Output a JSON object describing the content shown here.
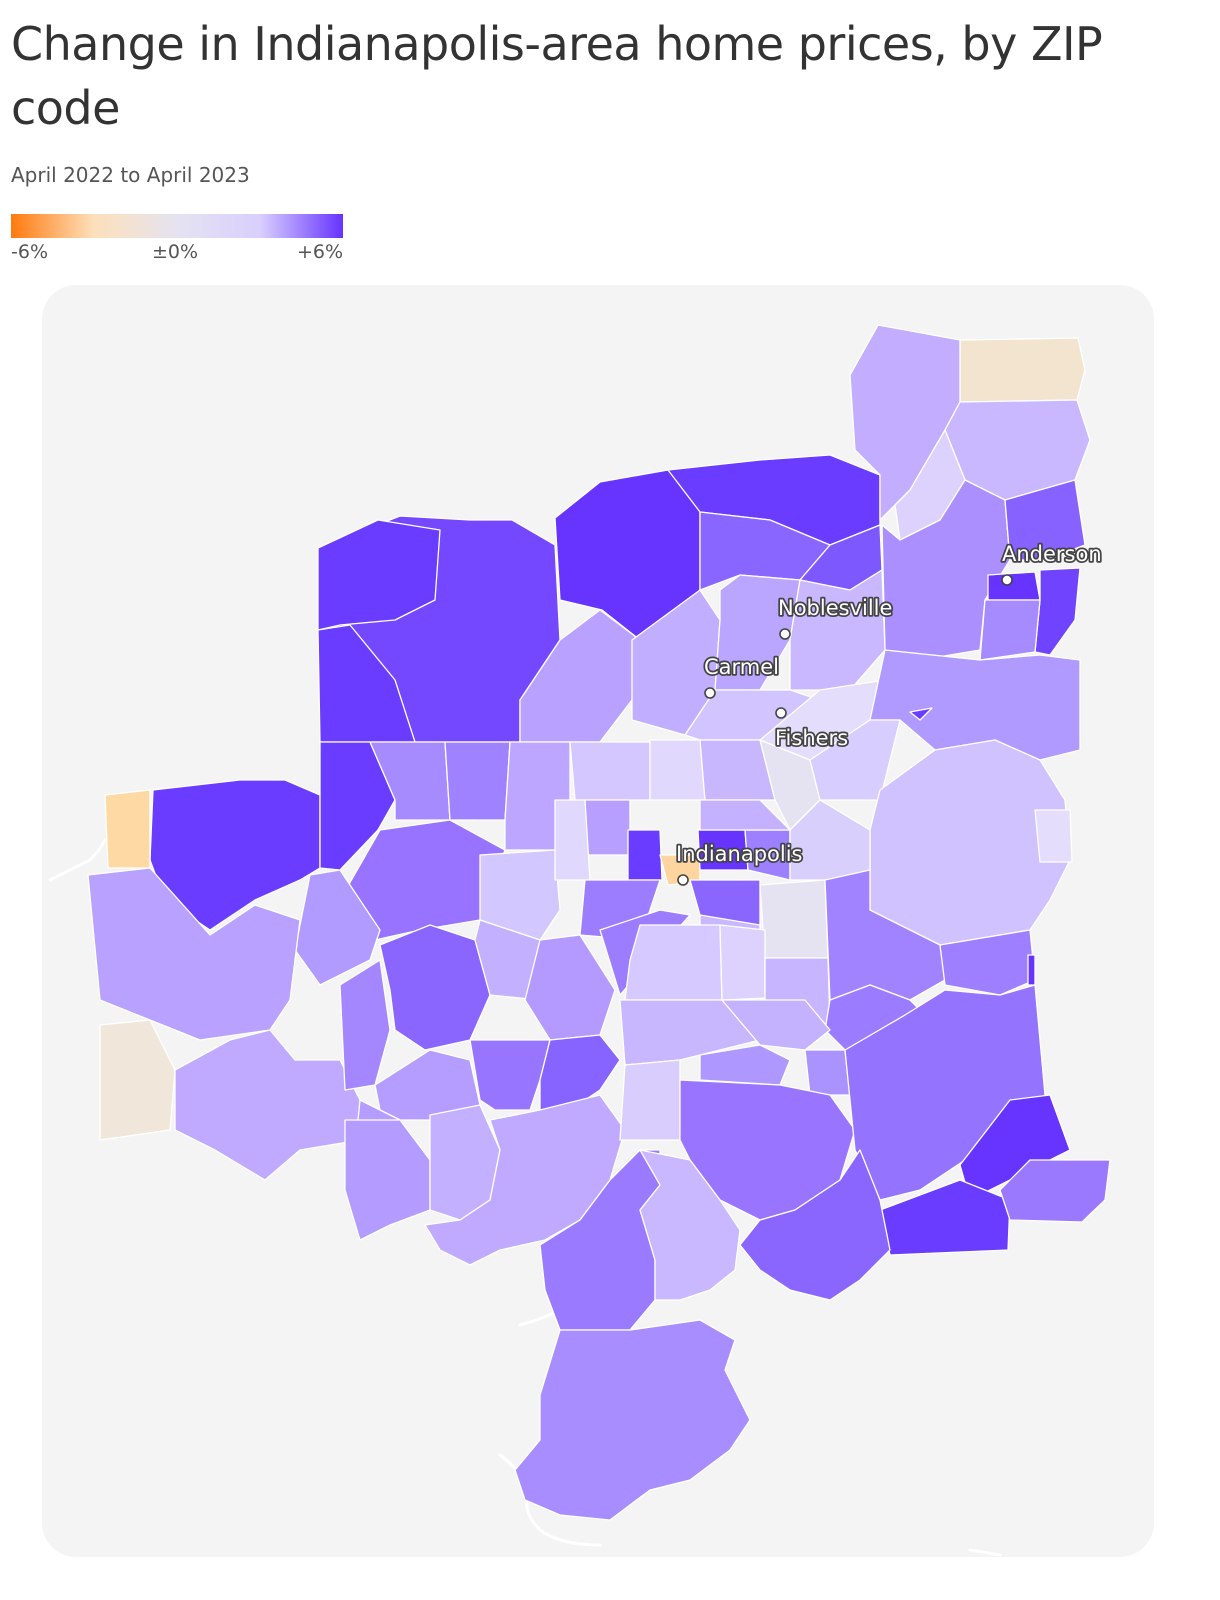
{
  "header": {
    "title": "Change in Indianapolis-area home prices, by ZIP code",
    "subtitle": "April 2022 to April 2023"
  },
  "legend": {
    "min_label": "-6%",
    "mid_label": "±0%",
    "max_label": "+6%",
    "min_value": -6,
    "max_value": 6,
    "colors": [
      "#ff7a0e",
      "#fde0bb",
      "#e5e3f1",
      "#d9cffd",
      "#6633ff"
    ]
  },
  "colors": {
    "background": "#ffffff",
    "map_land": "#f4f4f4",
    "region_border": "#ffffff",
    "text": "#333333",
    "subtext": "#555555"
  },
  "map": {
    "cities": [
      {
        "name": "Anderson"
      },
      {
        "name": "Noblesville"
      },
      {
        "name": "Carmel"
      },
      {
        "name": "Fishers"
      },
      {
        "name": "Indianapolis"
      }
    ]
  }
}
